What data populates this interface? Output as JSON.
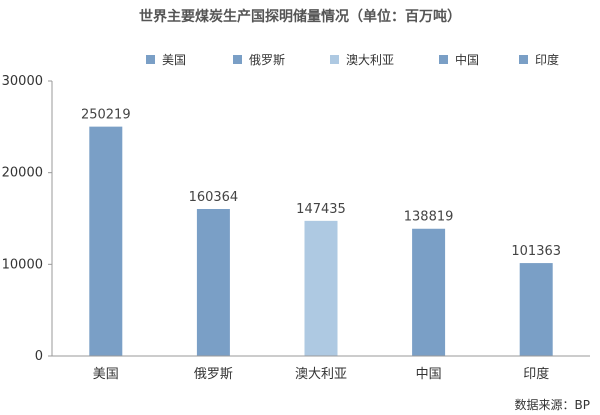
{
  "chart_data": {
    "type": "bar",
    "title": "世界主要煤炭生产国探明储量情况（单位：百万吨）",
    "categories": [
      "美国",
      "俄罗斯",
      "澳大利亚",
      "中国",
      "印度"
    ],
    "values": [
      250219,
      160364,
      147435,
      138819,
      101363
    ],
    "data_labels": [
      "250219",
      "160364",
      "147435",
      "138819",
      "101363"
    ],
    "bar_colors": [
      "#7a9fc6",
      "#7a9fc6",
      "#aec9e2",
      "#7a9fc6",
      "#7a9fc6"
    ],
    "y_ticks": [
      0,
      10000,
      20000,
      30000
    ],
    "y_tick_labels": [
      "0",
      "10000",
      "20000",
      "30000"
    ],
    "ylim": [
      0,
      30000
    ],
    "value_scale_note": "bar heights plotted at value/10",
    "plot_divisor": 10,
    "legend": [
      "美国",
      "俄罗斯",
      "澳大利亚",
      "中国",
      "印度"
    ],
    "legend_position": "top",
    "grid": false,
    "xlabel": "",
    "ylabel": ""
  },
  "source": "数据来源：BP"
}
